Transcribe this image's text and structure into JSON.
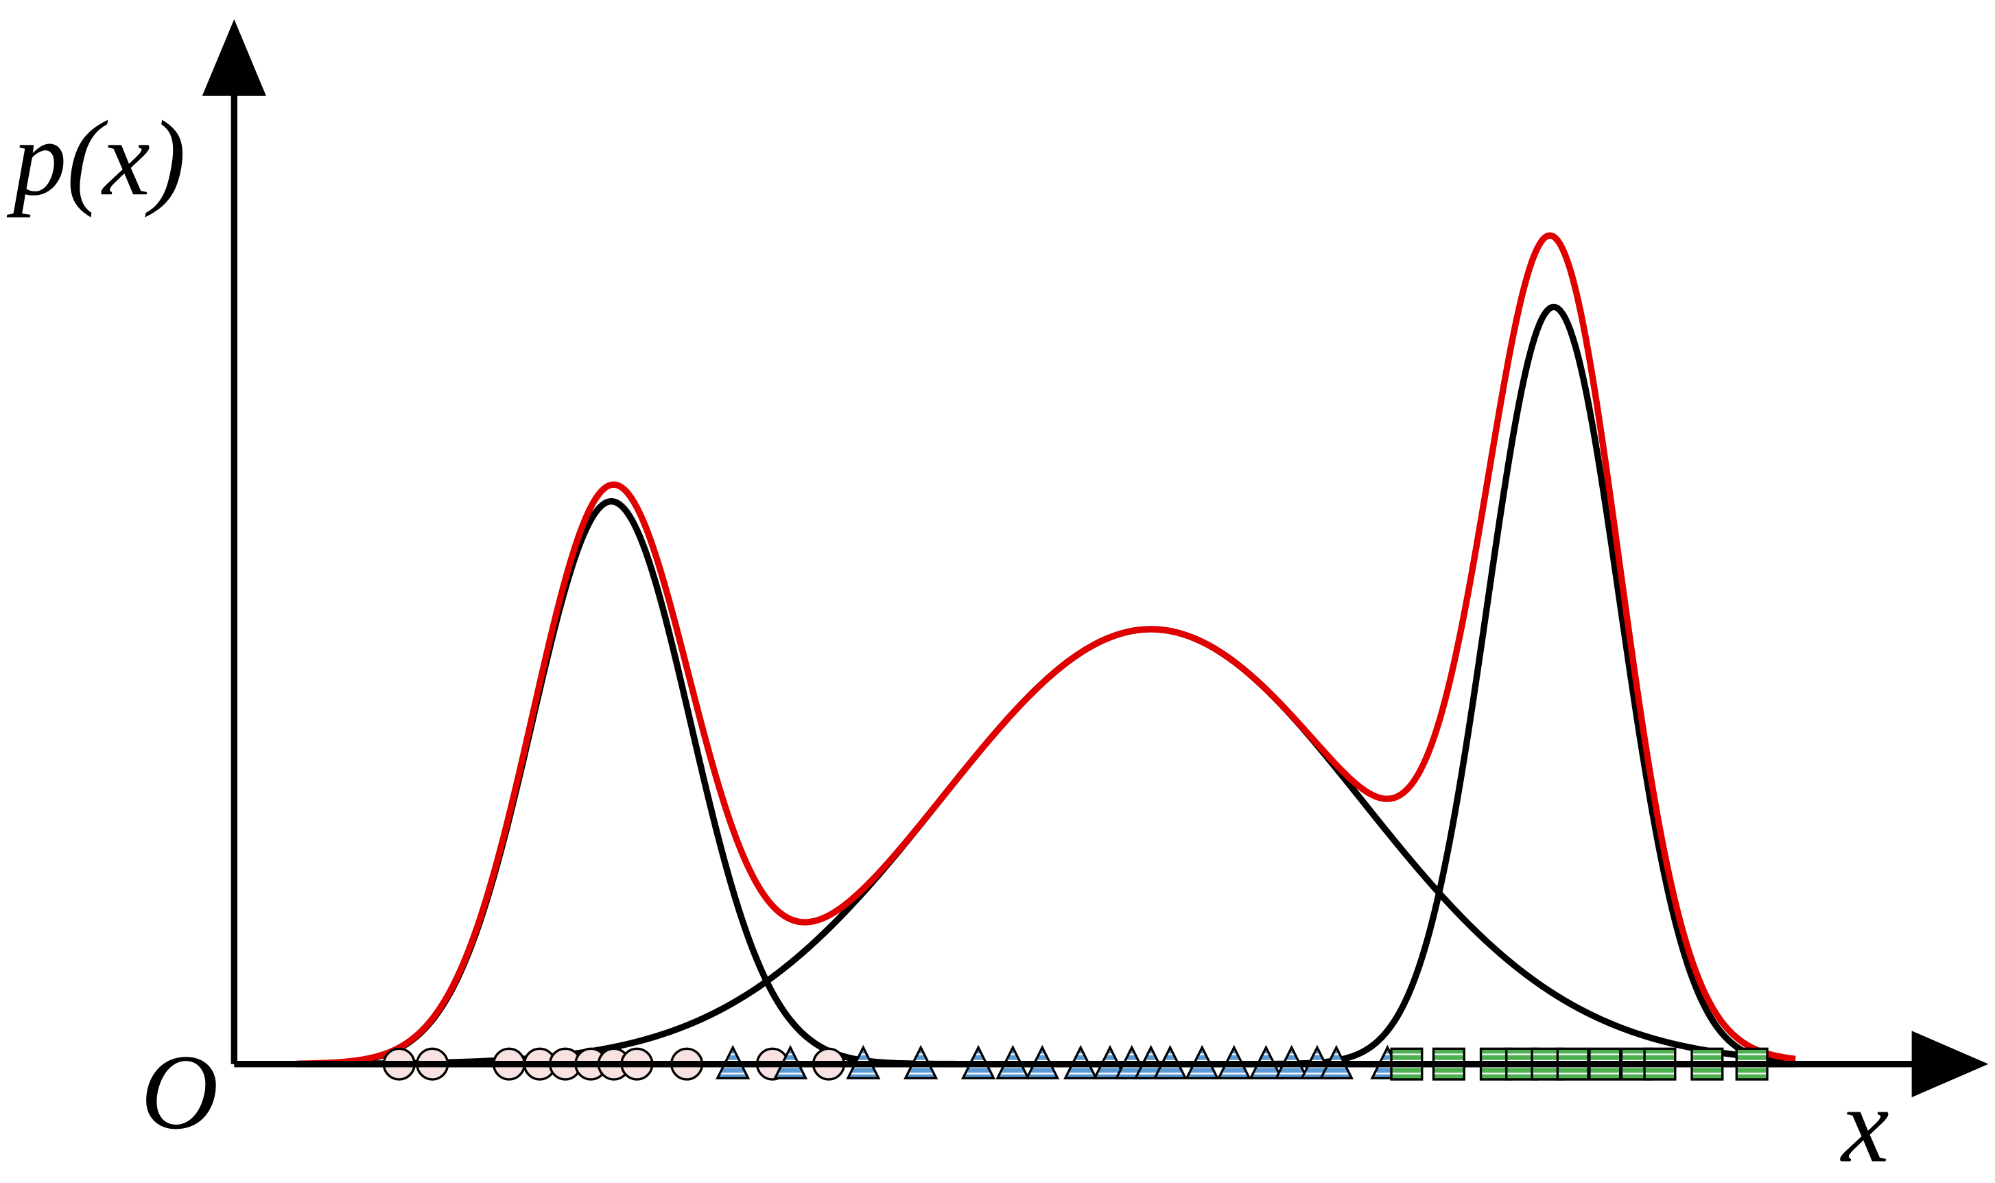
{
  "labels": {
    "y_axis": "p(x)",
    "origin": "O",
    "x_axis": "x"
  }
}
